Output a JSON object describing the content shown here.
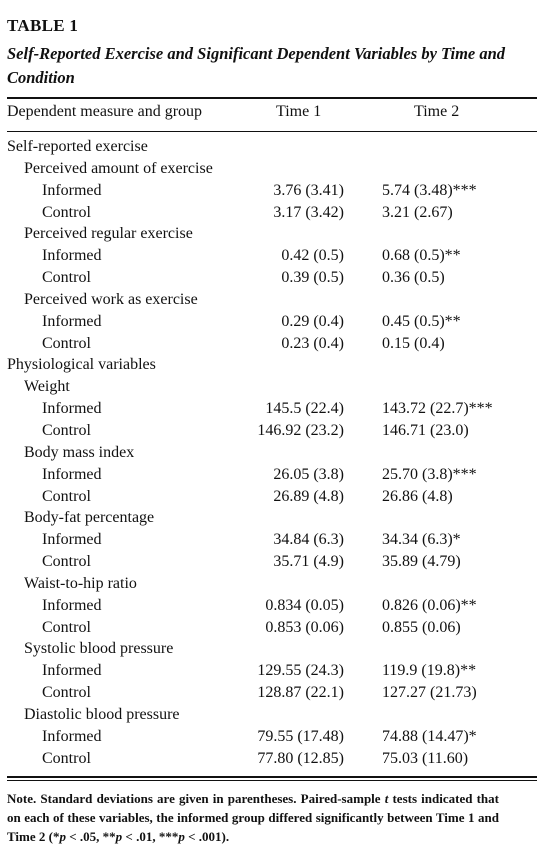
{
  "table": {
    "label": "TABLE 1",
    "caption": "Self-Reported Exercise and Significant Dependent Variables by Time and Condition",
    "headers": [
      "Dependent measure and group",
      "Time 1",
      "Time 2"
    ],
    "rows": [
      {
        "level": 0,
        "label": "Self-reported exercise",
        "t1": "",
        "t2": ""
      },
      {
        "level": 1,
        "label": "Perceived amount of exercise",
        "t1": "",
        "t2": ""
      },
      {
        "level": 2,
        "label": "Informed",
        "t1": "3.76 (3.41)",
        "t2": "5.74 (3.48)***"
      },
      {
        "level": 2,
        "label": "Control",
        "t1": "3.17 (3.42)",
        "t2": "3.21 (2.67)"
      },
      {
        "level": 1,
        "label": "Perceived regular exercise",
        "t1": "",
        "t2": ""
      },
      {
        "level": 2,
        "label": "Informed",
        "t1": "0.42 (0.5)",
        "t2": "0.68 (0.5)**"
      },
      {
        "level": 2,
        "label": "Control",
        "t1": "0.39 (0.5)",
        "t2": "0.36 (0.5)"
      },
      {
        "level": 1,
        "label": "Perceived work as exercise",
        "t1": "",
        "t2": ""
      },
      {
        "level": 2,
        "label": "Informed",
        "t1": "0.29 (0.4)",
        "t2": "0.45 (0.5)**"
      },
      {
        "level": 2,
        "label": "Control",
        "t1": "0.23 (0.4)",
        "t2": "0.15 (0.4)"
      },
      {
        "level": 0,
        "label": "Physiological variables",
        "t1": "",
        "t2": ""
      },
      {
        "level": 1,
        "label": "Weight",
        "t1": "",
        "t2": ""
      },
      {
        "level": 2,
        "label": "Informed",
        "t1": "145.5 (22.4)",
        "t2": "143.72 (22.7)***"
      },
      {
        "level": 2,
        "label": "Control",
        "t1": "146.92 (23.2)",
        "t2": "146.71 (23.0)"
      },
      {
        "level": 1,
        "label": "Body mass index",
        "t1": "",
        "t2": ""
      },
      {
        "level": 2,
        "label": "Informed",
        "t1": "26.05 (3.8)",
        "t2": "25.70 (3.8)***"
      },
      {
        "level": 2,
        "label": "Control",
        "t1": "26.89 (4.8)",
        "t2": "26.86 (4.8)"
      },
      {
        "level": 1,
        "label": "Body-fat percentage",
        "t1": "",
        "t2": ""
      },
      {
        "level": 2,
        "label": "Informed",
        "t1": "34.84 (6.3)",
        "t2": "34.34 (6.3)*"
      },
      {
        "level": 2,
        "label": "Control",
        "t1": "35.71 (4.9)",
        "t2": "35.89 (4.79)"
      },
      {
        "level": 1,
        "label": "Waist-to-hip ratio",
        "t1": "",
        "t2": ""
      },
      {
        "level": 2,
        "label": "Informed",
        "t1": "0.834 (0.05)",
        "t2": "0.826 (0.06)**"
      },
      {
        "level": 2,
        "label": "Control",
        "t1": "0.853 (0.06)",
        "t2": "0.855 (0.06)"
      },
      {
        "level": 1,
        "label": "Systolic blood pressure",
        "t1": "",
        "t2": ""
      },
      {
        "level": 2,
        "label": "Informed",
        "t1": "129.55 (24.3)",
        "t2": "119.9 (19.8)**"
      },
      {
        "level": 2,
        "label": "Control",
        "t1": "128.87 (22.1)",
        "t2": "127.27 (21.73)"
      },
      {
        "level": 1,
        "label": "Diastolic blood pressure",
        "t1": "",
        "t2": ""
      },
      {
        "level": 2,
        "label": "Informed",
        "t1": "79.55 (17.48)",
        "t2": "74.88 (14.47)*"
      },
      {
        "level": 2,
        "label": "Control",
        "t1": "77.80 (12.85)",
        "t2": "75.03 (11.60)"
      }
    ],
    "note": {
      "lead": "Note.",
      "text_a": " Standard deviations are given in parentheses. Paired-sample ",
      "t_symbol": "t",
      "text_b": " tests indicated that on each of these variables, the informed group differed significantly between Time 1 and Time 2 (",
      "sig_1_stars": "*",
      "sig_1_p": "p",
      "sig_1_val": " < .05, ",
      "sig_2_stars": "**",
      "sig_2_p": "p",
      "sig_2_val": " < .01, ",
      "sig_3_stars": "***",
      "sig_3_p": "p",
      "sig_3_val": " < .001)."
    }
  }
}
